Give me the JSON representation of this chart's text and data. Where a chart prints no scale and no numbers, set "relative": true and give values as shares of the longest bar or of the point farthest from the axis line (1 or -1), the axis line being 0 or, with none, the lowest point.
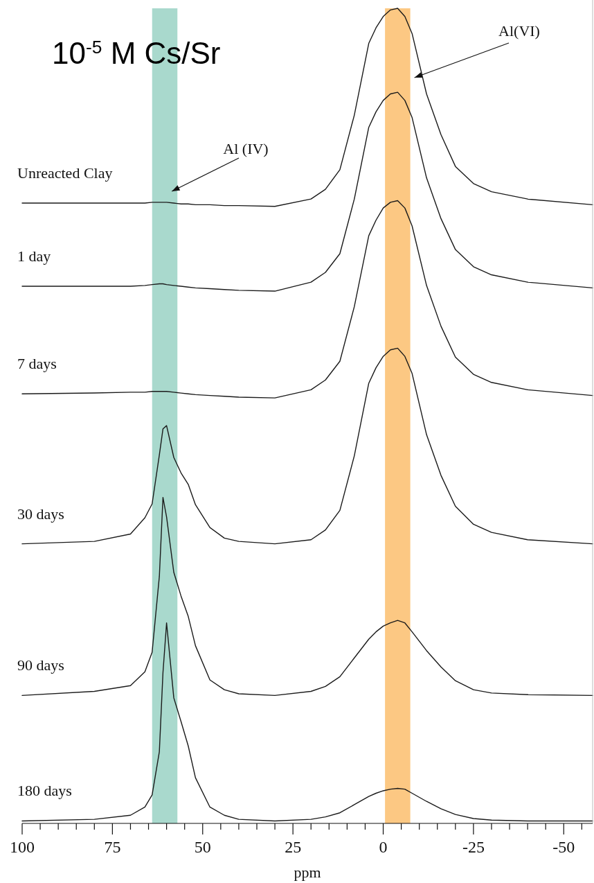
{
  "chart_data": {
    "type": "line",
    "title": "10$^{-5}$ M Cs/Sr",
    "xlabel": "ppm",
    "relative": true,
    "x": [
      100,
      80,
      70,
      66,
      64,
      62,
      61,
      60,
      58,
      56,
      54,
      52,
      48,
      44,
      40,
      30,
      20,
      16,
      12,
      8,
      4,
      2,
      0,
      -2,
      -4,
      -6,
      -8,
      -12,
      -16,
      -20,
      -25,
      -30,
      -40,
      -58
    ],
    "xlim": [
      100,
      -58
    ],
    "xticks": [
      100,
      {
        "value": 95,
        "label": null
      },
      {
        "value": 90,
        "label": null
      },
      {
        "value": 85,
        "label": null
      },
      {
        "value": 80,
        "label": null
      },
      75,
      {
        "value": 70,
        "label": null
      },
      {
        "value": 65,
        "label": null
      },
      {
        "value": 60,
        "label": null
      },
      {
        "value": 55,
        "label": null
      },
      50,
      {
        "value": 45,
        "label": null
      },
      {
        "value": 40,
        "label": null
      },
      {
        "value": 35,
        "label": null
      },
      {
        "value": 30,
        "label": null
      },
      25,
      {
        "value": 20,
        "label": null
      },
      {
        "value": 15,
        "label": null
      },
      {
        "value": 10,
        "label": null
      },
      {
        "value": 5,
        "label": null
      },
      0,
      {
        "value": -5,
        "label": null
      },
      {
        "value": -10,
        "label": null
      },
      {
        "value": -15,
        "label": null
      },
      {
        "value": -20,
        "label": null
      },
      -25,
      {
        "value": -30,
        "label": null
      },
      {
        "value": -35,
        "label": null
      },
      {
        "value": -40,
        "label": null
      },
      {
        "value": -45,
        "label": null
      },
      -50,
      {
        "value": -55,
        "label": null
      }
    ],
    "series": [
      {
        "name": "Unreacted Clay",
        "color": "#1a1a1a",
        "values": [
          0.761,
          0.761,
          0.761,
          0.761,
          0.762,
          0.762,
          0.762,
          0.762,
          0.761,
          0.76,
          0.76,
          0.759,
          0.759,
          0.758,
          0.758,
          0.757,
          0.766,
          0.778,
          0.802,
          0.869,
          0.957,
          0.976,
          0.99,
          0.998,
          1.0,
          0.99,
          0.969,
          0.895,
          0.845,
          0.806,
          0.785,
          0.775,
          0.766,
          0.759
        ]
      },
      {
        "name": "1 day",
        "color": "#1a1a1a",
        "values": [
          0.659,
          0.659,
          0.659,
          0.66,
          0.661,
          0.662,
          0.662,
          0.661,
          0.66,
          0.659,
          0.658,
          0.657,
          0.656,
          0.655,
          0.654,
          0.653,
          0.664,
          0.676,
          0.699,
          0.766,
          0.854,
          0.873,
          0.887,
          0.895,
          0.897,
          0.887,
          0.866,
          0.792,
          0.742,
          0.704,
          0.683,
          0.673,
          0.664,
          0.657
        ]
      },
      {
        "name": "7 days",
        "color": "#1a1a1a",
        "values": [
          0.527,
          0.528,
          0.529,
          0.529,
          0.53,
          0.53,
          0.53,
          0.53,
          0.529,
          0.528,
          0.527,
          0.526,
          0.525,
          0.524,
          0.523,
          0.522,
          0.532,
          0.544,
          0.567,
          0.634,
          0.721,
          0.74,
          0.755,
          0.762,
          0.764,
          0.755,
          0.733,
          0.66,
          0.61,
          0.572,
          0.551,
          0.541,
          0.532,
          0.525
        ]
      },
      {
        "name": "30 days",
        "color": "#1a1a1a",
        "values": [
          0.343,
          0.346,
          0.355,
          0.375,
          0.392,
          0.452,
          0.484,
          0.488,
          0.449,
          0.43,
          0.416,
          0.391,
          0.363,
          0.35,
          0.346,
          0.343,
          0.348,
          0.36,
          0.384,
          0.451,
          0.54,
          0.559,
          0.573,
          0.581,
          0.583,
          0.573,
          0.552,
          0.477,
          0.427,
          0.389,
          0.367,
          0.357,
          0.348,
          0.343
        ]
      },
      {
        "name": "90 days",
        "color": "#1a1a1a",
        "values": [
          0.157,
          0.162,
          0.169,
          0.186,
          0.21,
          0.303,
          0.4,
          0.376,
          0.308,
          0.279,
          0.254,
          0.218,
          0.176,
          0.164,
          0.159,
          0.157,
          0.162,
          0.168,
          0.18,
          0.203,
          0.226,
          0.235,
          0.242,
          0.246,
          0.249,
          0.246,
          0.235,
          0.212,
          0.192,
          0.175,
          0.164,
          0.16,
          0.158,
          0.157
        ]
      },
      {
        "name": "180 days",
        "color": "#1a1a1a",
        "values": [
          0.003,
          0.005,
          0.01,
          0.02,
          0.035,
          0.088,
          0.185,
          0.246,
          0.154,
          0.125,
          0.095,
          0.056,
          0.02,
          0.01,
          0.005,
          0.003,
          0.005,
          0.008,
          0.013,
          0.023,
          0.033,
          0.037,
          0.04,
          0.042,
          0.043,
          0.042,
          0.037,
          0.027,
          0.018,
          0.011,
          0.006,
          0.004,
          0.003,
          0.003
        ]
      }
    ],
    "bands": [
      {
        "axis": "x",
        "from": 64,
        "to": 57,
        "label": "Al (IV)",
        "color": "#a9d9cd"
      },
      {
        "axis": "x",
        "from": -0.5,
        "to": -7.5,
        "label": "Al(VI)",
        "color": "#fcc883"
      }
    ]
  }
}
